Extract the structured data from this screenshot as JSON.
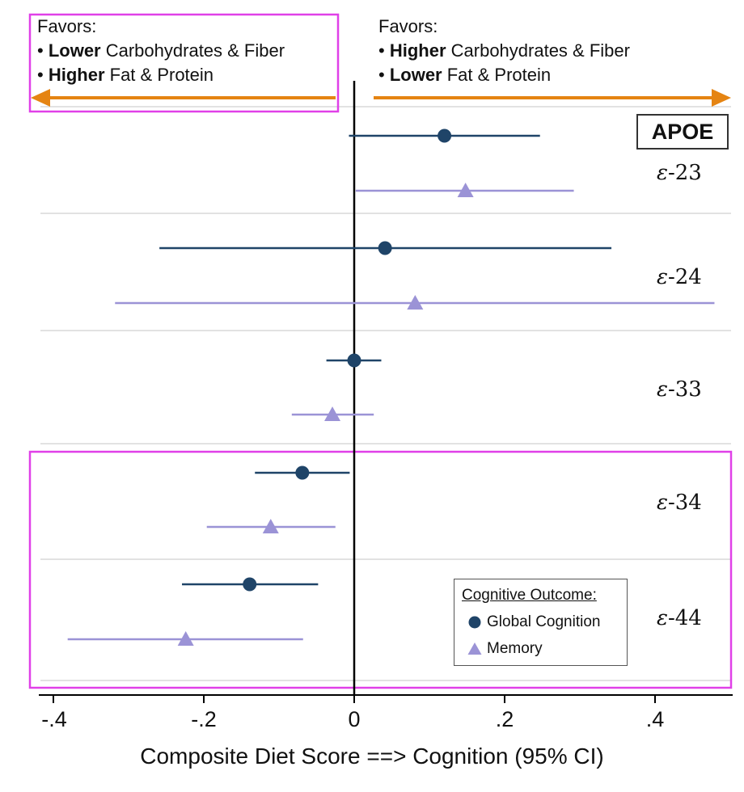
{
  "chart_data": {
    "type": "forest",
    "xlabel": "Composite Diet Score ==> Cognition (95% CI)",
    "xlim": [
      -0.42,
      0.5
    ],
    "x_ticks": [
      {
        "value": -0.4,
        "label": "-.4"
      },
      {
        "value": -0.2,
        "label": "-.2"
      },
      {
        "value": 0,
        "label": "0"
      },
      {
        "value": 0.2,
        "label": ".2"
      },
      {
        "value": 0.4,
        "label": ".4"
      }
    ],
    "group_title": "APOE",
    "groups": [
      {
        "prefix": "ε",
        "name": "-23"
      },
      {
        "prefix": "ε",
        "name": "-24"
      },
      {
        "prefix": "ε",
        "name": "-33"
      },
      {
        "prefix": "ε",
        "name": "-34"
      },
      {
        "prefix": "ε",
        "name": "-44"
      }
    ],
    "series": [
      {
        "name": "Global Cognition",
        "marker": "circle",
        "color": "#1f4468",
        "points": [
          {
            "group": "-23",
            "estimate": 0.12,
            "ci": [
              -0.007,
              0.247
            ]
          },
          {
            "group": "-24",
            "estimate": 0.041,
            "ci": [
              -0.259,
              0.342
            ]
          },
          {
            "group": "-33",
            "estimate": 0.0,
            "ci": [
              -0.037,
              0.036
            ]
          },
          {
            "group": "-34",
            "estimate": -0.069,
            "ci": [
              -0.132,
              -0.006
            ]
          },
          {
            "group": "-44",
            "estimate": -0.139,
            "ci": [
              -0.229,
              -0.048
            ]
          }
        ]
      },
      {
        "name": "Memory",
        "marker": "triangle",
        "color": "#9b93d6",
        "points": [
          {
            "group": "-23",
            "estimate": 0.148,
            "ci": [
              0.002,
              0.292
            ]
          },
          {
            "group": "-24",
            "estimate": 0.081,
            "ci": [
              -0.318,
              0.479
            ]
          },
          {
            "group": "-33",
            "estimate": -0.029,
            "ci": [
              -0.083,
              0.026
            ]
          },
          {
            "group": "-34",
            "estimate": -0.111,
            "ci": [
              -0.196,
              -0.025
            ]
          },
          {
            "group": "-44",
            "estimate": -0.224,
            "ci": [
              -0.381,
              -0.068
            ]
          }
        ]
      }
    ],
    "legend": {
      "title": "Cognitive Outcome:",
      "placement": "bottom-right"
    }
  },
  "annotations": {
    "left": {
      "title": "Favors:",
      "line1": {
        "bold": "Lower",
        "rest": " Carbohydrates & Fiber"
      },
      "line2": {
        "bold": "Higher",
        "rest": " Fat & Protein"
      }
    },
    "right": {
      "title": "Favors:",
      "line1": {
        "bold": "Higher",
        "rest": " Carbohydrates & Fiber"
      },
      "line2": {
        "bold": "Lower",
        "rest": " Fat & Protein"
      }
    }
  },
  "colors": {
    "arrow": "#e58412",
    "highlight": "#e040e8",
    "axis": "#000000",
    "grid": "#d9d9d9"
  }
}
